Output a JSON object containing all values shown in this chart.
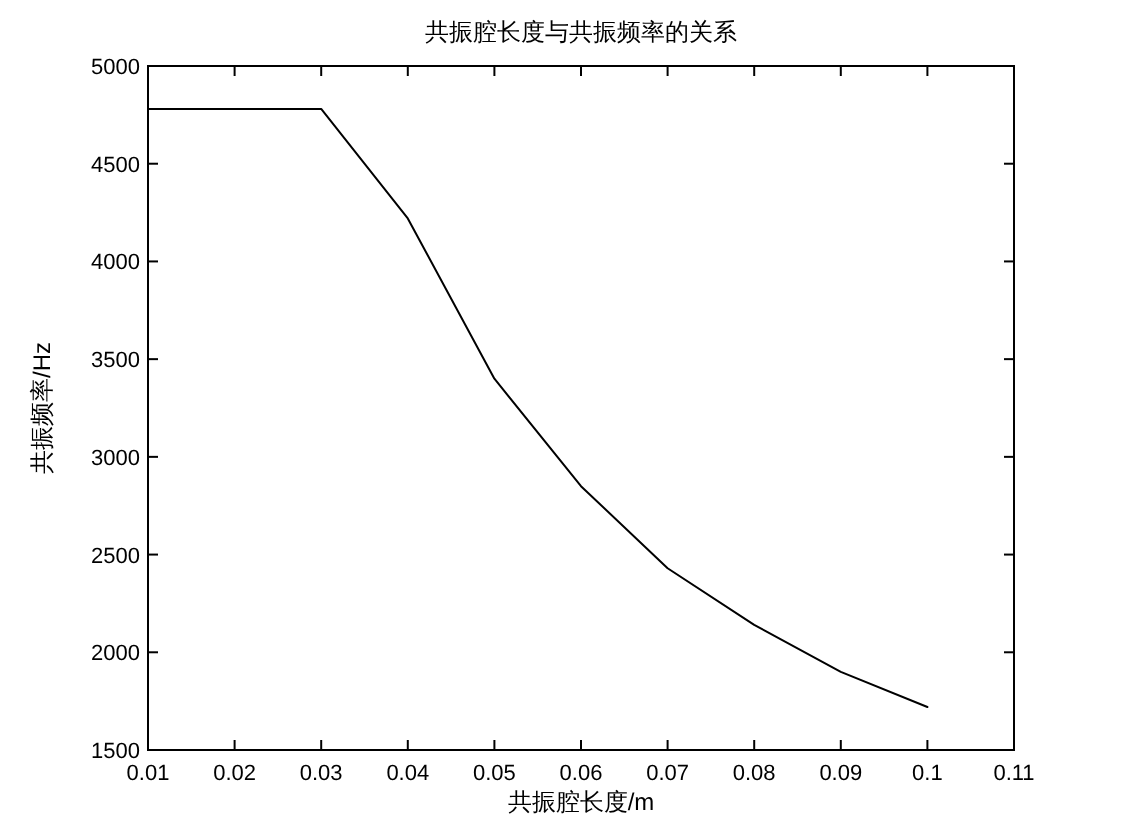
{
  "chart_data": {
    "type": "line",
    "title": "共振腔长度与共振频率的关系",
    "xlabel": "共振腔长度/m",
    "ylabel": "共振频率/Hz",
    "x": [
      0.01,
      0.02,
      0.03,
      0.04,
      0.05,
      0.06,
      0.07,
      0.08,
      0.09,
      0.1
    ],
    "series": [
      {
        "color": "#000000",
        "values": [
          4780,
          4780,
          4780,
          4220,
          3400,
          2850,
          2430,
          2140,
          1900,
          1720
        ]
      }
    ],
    "xlim": [
      0.01,
      0.11
    ],
    "xticks": [
      0.01,
      0.02,
      0.03,
      0.04,
      0.05,
      0.06,
      0.07,
      0.08,
      0.09,
      0.1,
      0.11
    ],
    "ylim": [
      1500,
      5000
    ],
    "yticks": [
      1500,
      2000,
      2500,
      3000,
      3500,
      4000,
      4500,
      5000
    ],
    "marker": "none",
    "line_style": "solid"
  }
}
